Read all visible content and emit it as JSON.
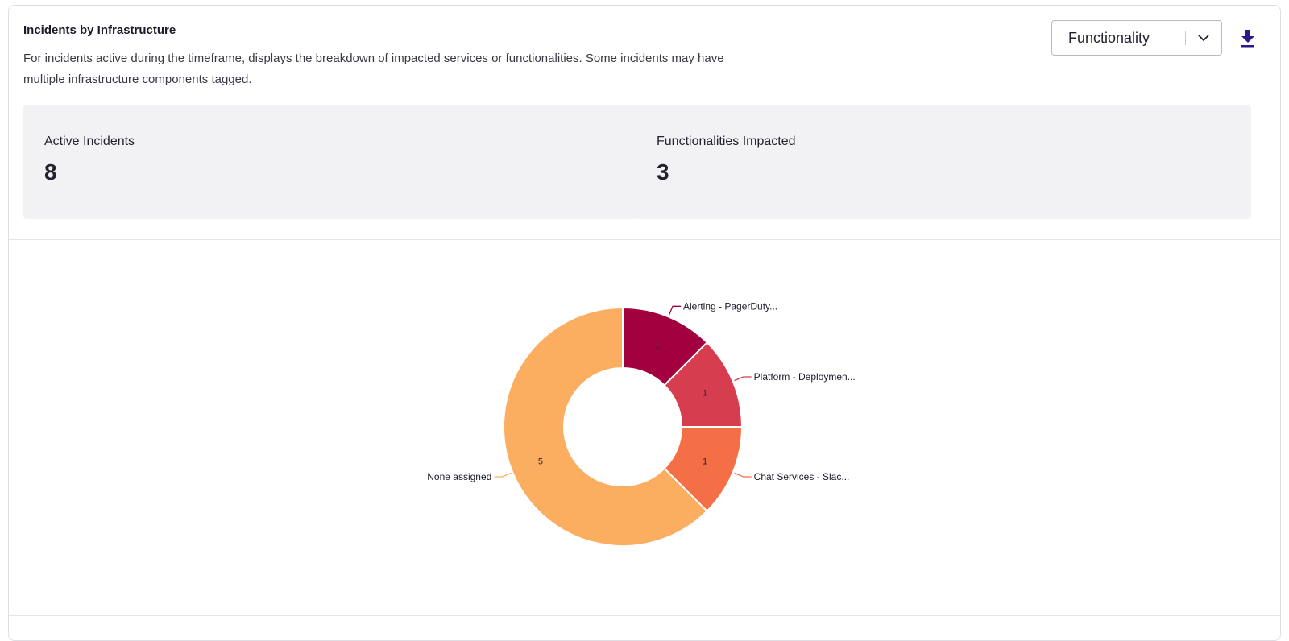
{
  "panel": {
    "title": "Incidents by Infrastructure",
    "description": "For incidents active during the timeframe, displays the breakdown of impacted services or functionalities. Some incidents may have multiple infrastructure components tagged.",
    "group_by": {
      "selected": "Functionality"
    },
    "download_icon": "download-icon",
    "chevron_icon": "chevron-down-icon"
  },
  "stats": [
    {
      "label": "Active Incidents",
      "value": "8"
    },
    {
      "label": "Functionalities Impacted",
      "value": "3"
    }
  ],
  "chart_data": {
    "type": "pie",
    "subtype": "donut",
    "slices": [
      {
        "label": "Alerting - PagerDuty...",
        "value": 1,
        "color": "#a3003f"
      },
      {
        "label": "Platform - Deploymen...",
        "value": 1,
        "color": "#d63d4f"
      },
      {
        "label": "Chat Services - Slac...",
        "value": 1,
        "color": "#f46f45"
      },
      {
        "label": "None assigned",
        "value": 5,
        "color": "#fbad60"
      }
    ]
  }
}
